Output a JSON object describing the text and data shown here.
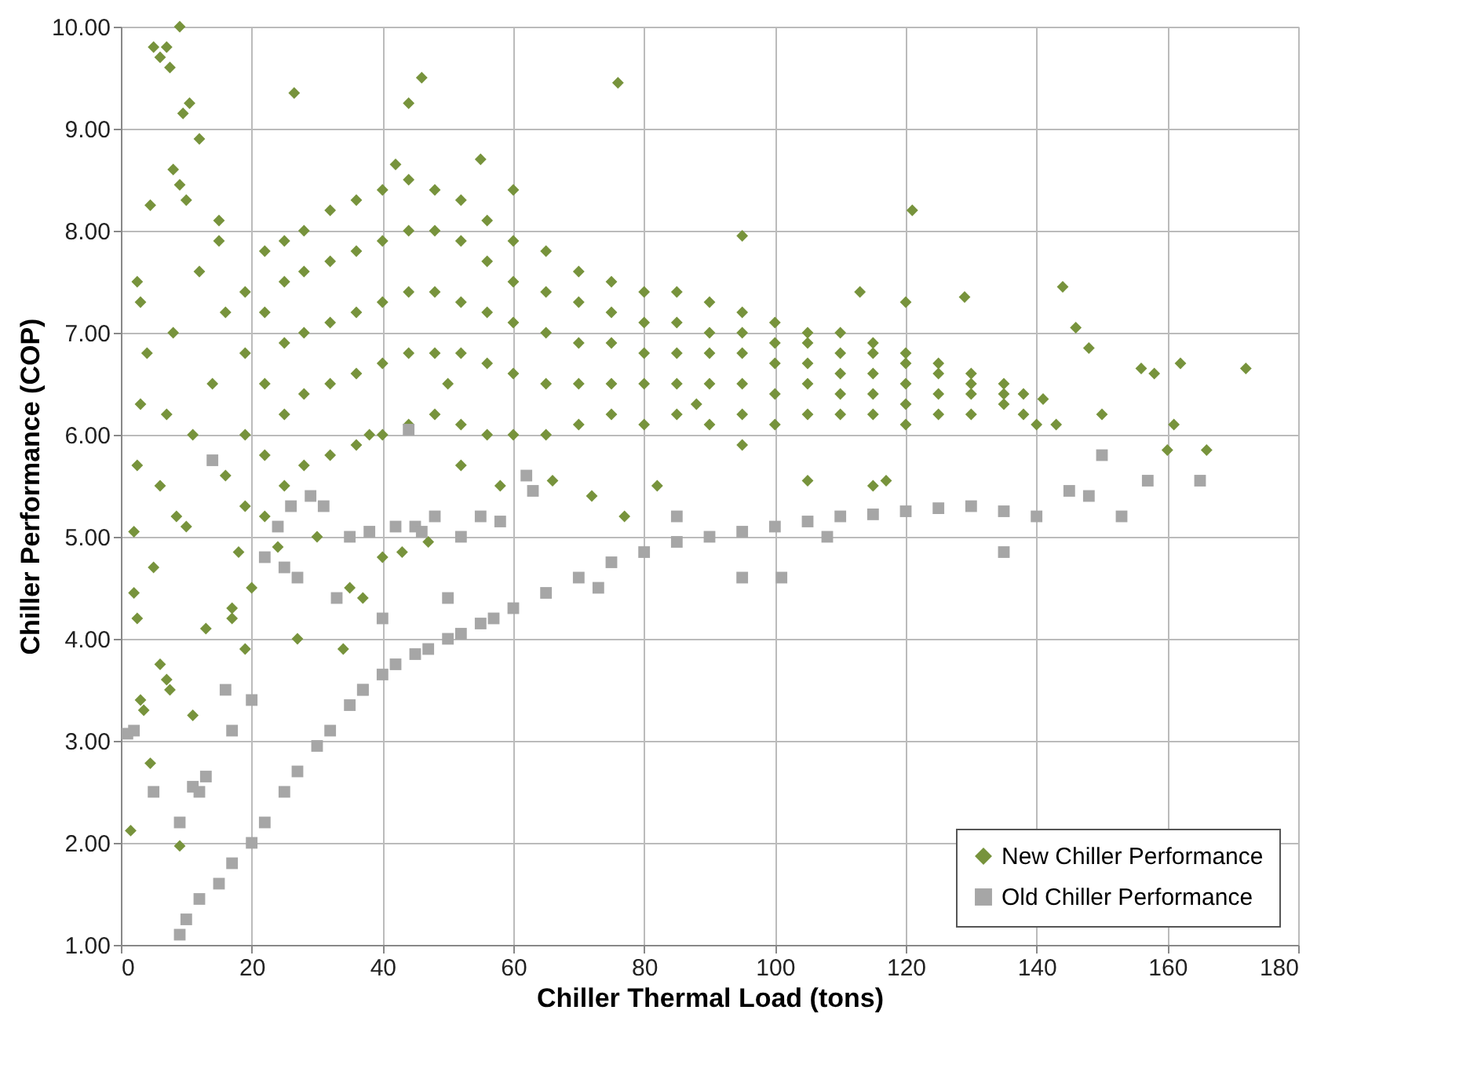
{
  "chart_data": {
    "type": "scatter",
    "xlabel": "Chiller Thermal Load (tons)",
    "ylabel": "Chiller Performance (COP)",
    "xlim": [
      0,
      180
    ],
    "xticks": [
      0,
      20,
      40,
      60,
      80,
      100,
      120,
      140,
      160,
      180
    ],
    "ylim": [
      1,
      10
    ],
    "yticks": [
      {
        "value": 1,
        "label": "1.00"
      },
      {
        "value": 2,
        "label": "2.00"
      },
      {
        "value": 3,
        "label": "3.00"
      },
      {
        "value": 4,
        "label": "4.00"
      },
      {
        "value": 5,
        "label": "5.00"
      },
      {
        "value": 6,
        "label": "6.00"
      },
      {
        "value": 7,
        "label": "7.00"
      },
      {
        "value": 8,
        "label": "8.00"
      },
      {
        "value": 9,
        "label": "9.00"
      },
      {
        "value": 10,
        "label": "10.00"
      }
    ],
    "grid": true,
    "legend": "bottom right",
    "series": [
      {
        "name": "New Chiller Performance",
        "color": "#77933c",
        "marker": "diamond",
        "x": [
          1.5,
          2,
          2.5,
          3,
          3.5,
          4.5,
          6,
          7,
          7.5,
          9,
          11,
          2,
          2.5,
          3,
          2.5,
          3,
          4,
          4.5,
          5,
          6,
          7,
          7.5,
          9,
          9.5,
          10.5,
          12,
          8,
          9,
          10,
          5,
          6,
          7,
          8,
          8.5,
          10,
          11,
          12,
          13,
          14,
          15,
          16,
          17,
          17,
          18,
          19,
          15,
          16,
          26.5,
          27,
          34,
          35,
          37,
          44,
          46,
          42,
          55,
          60,
          76,
          95,
          121,
          120,
          113,
          129,
          144,
          146,
          148,
          141,
          140,
          143,
          150,
          156,
          158,
          162,
          160,
          161,
          166,
          172,
          105,
          115,
          117,
          95,
          82,
          77,
          72,
          66,
          58,
          52,
          47,
          43,
          40,
          30,
          24,
          20,
          38,
          50,
          88,
          19,
          19,
          19,
          19,
          22,
          22,
          22,
          22,
          22,
          25,
          25,
          25,
          25,
          25,
          28,
          28,
          28,
          28,
          28,
          32,
          32,
          32,
          32,
          32,
          36,
          36,
          36,
          36,
          36,
          40,
          40,
          40,
          40,
          40,
          44,
          44,
          44,
          44,
          44,
          48,
          48,
          48,
          48,
          48,
          52,
          52,
          52,
          52,
          52,
          56,
          56,
          56,
          56,
          56,
          60,
          60,
          60,
          60,
          60,
          65,
          65,
          65,
          65,
          65,
          70,
          70,
          70,
          70,
          70,
          75,
          75,
          75,
          75,
          75,
          80,
          80,
          80,
          80,
          80,
          85,
          85,
          85,
          85,
          85,
          90,
          90,
          90,
          90,
          90,
          95,
          95,
          95,
          95,
          95,
          100,
          100,
          100,
          100,
          100,
          105,
          105,
          105,
          105,
          105,
          110,
          110,
          110,
          110,
          110,
          115,
          115,
          115,
          115,
          115,
          120,
          120,
          120,
          120,
          120,
          125,
          125,
          125,
          125,
          130,
          130,
          130,
          130,
          135,
          135,
          135,
          138,
          138
        ],
        "values": [
          2.12,
          4.45,
          4.2,
          3.4,
          3.3,
          2.78,
          3.75,
          3.6,
          3.5,
          1.97,
          3.25,
          5.05,
          5.7,
          6.3,
          7.5,
          7.3,
          6.8,
          8.25,
          9.8,
          9.7,
          9.8,
          9.6,
          10.0,
          9.15,
          9.25,
          8.9,
          8.6,
          8.45,
          8.3,
          4.7,
          5.5,
          6.2,
          7.0,
          5.2,
          5.1,
          6.0,
          7.6,
          4.1,
          6.5,
          7.9,
          5.6,
          4.3,
          4.2,
          4.85,
          3.9,
          8.1,
          7.2,
          9.35,
          4.0,
          3.9,
          4.5,
          4.4,
          9.25,
          9.5,
          8.65,
          8.7,
          8.4,
          9.45,
          7.95,
          8.2,
          7.3,
          7.4,
          7.35,
          7.45,
          7.05,
          6.85,
          6.35,
          6.1,
          6.1,
          6.2,
          6.65,
          6.6,
          6.7,
          5.85,
          6.1,
          5.85,
          6.65,
          5.55,
          5.5,
          5.55,
          5.9,
          5.5,
          5.2,
          5.4,
          5.55,
          5.5,
          5.7,
          4.95,
          4.85,
          4.8,
          5.0,
          4.9,
          4.5,
          6.0,
          6.5,
          6.3,
          5.3,
          6.0,
          6.8,
          7.4,
          5.2,
          5.8,
          6.5,
          7.2,
          7.8,
          5.5,
          6.2,
          6.9,
          7.5,
          7.9,
          5.7,
          6.4,
          7.0,
          7.6,
          8.0,
          5.8,
          6.5,
          7.1,
          7.7,
          8.2,
          5.9,
          6.6,
          7.2,
          7.8,
          8.3,
          6.0,
          6.7,
          7.3,
          7.9,
          8.4,
          6.1,
          6.8,
          7.4,
          8.0,
          8.5,
          6.2,
          6.8,
          7.4,
          8.0,
          8.4,
          6.1,
          6.8,
          7.3,
          7.9,
          8.3,
          6.0,
          6.7,
          7.2,
          7.7,
          8.1,
          6.0,
          6.6,
          7.1,
          7.5,
          7.9,
          6.0,
          6.5,
          7.0,
          7.4,
          7.8,
          6.1,
          6.5,
          6.9,
          7.3,
          7.6,
          6.2,
          6.5,
          6.9,
          7.2,
          7.5,
          6.1,
          6.5,
          6.8,
          7.1,
          7.4,
          6.2,
          6.5,
          6.8,
          7.1,
          7.4,
          6.1,
          6.5,
          6.8,
          7.0,
          7.3,
          6.2,
          6.5,
          6.8,
          7.0,
          7.2,
          6.1,
          6.4,
          6.7,
          6.9,
          7.1,
          6.2,
          6.5,
          6.7,
          6.9,
          7.0,
          6.2,
          6.4,
          6.6,
          6.8,
          7.0,
          6.2,
          6.4,
          6.6,
          6.8,
          6.9,
          6.1,
          6.3,
          6.5,
          6.7,
          6.8,
          6.2,
          6.4,
          6.6,
          6.7,
          6.2,
          6.4,
          6.5,
          6.6,
          6.3,
          6.4,
          6.5,
          6.2,
          6.4
        ]
      },
      {
        "name": "Old Chiller Performance",
        "color": "#a6a6a6",
        "marker": "square",
        "x": [
          9,
          10,
          12,
          15,
          17,
          20,
          22,
          25,
          27,
          30,
          32,
          35,
          37,
          40,
          42,
          45,
          47,
          50,
          52,
          55,
          57,
          60,
          65,
          70,
          75,
          80,
          85,
          90,
          95,
          100,
          105,
          110,
          115,
          120,
          125,
          130,
          135,
          140,
          1,
          2,
          5,
          9,
          11,
          12,
          13,
          16,
          17,
          14,
          25,
          27,
          29,
          31,
          33,
          35,
          37,
          40,
          44,
          45,
          48,
          50,
          52,
          58,
          62,
          63,
          73,
          85,
          95,
          101,
          108,
          135,
          145,
          148,
          150,
          153,
          157,
          165,
          22,
          24,
          26,
          38,
          42,
          46,
          20,
          55
        ],
        "values": [
          1.1,
          1.25,
          1.45,
          1.6,
          1.8,
          2.0,
          2.2,
          2.5,
          2.7,
          2.95,
          3.1,
          3.35,
          3.5,
          3.65,
          3.75,
          3.85,
          3.9,
          4.0,
          4.05,
          4.15,
          4.2,
          4.3,
          4.45,
          4.6,
          4.75,
          4.85,
          4.95,
          5.0,
          5.05,
          5.1,
          5.15,
          5.2,
          5.22,
          5.25,
          5.28,
          5.3,
          5.25,
          5.2,
          3.07,
          3.1,
          2.5,
          2.2,
          2.55,
          2.5,
          2.65,
          3.5,
          3.1,
          5.75,
          4.7,
          4.6,
          5.4,
          5.3,
          4.4,
          5.0,
          3.5,
          4.2,
          6.05,
          5.1,
          5.2,
          4.4,
          5.0,
          5.15,
          5.6,
          5.45,
          4.5,
          5.2,
          4.6,
          4.6,
          5.0,
          4.85,
          5.45,
          5.4,
          5.8,
          5.2,
          5.55,
          5.55,
          4.8,
          5.1,
          5.3,
          5.05,
          5.1,
          5.05,
          3.4,
          5.2
        ]
      }
    ]
  }
}
